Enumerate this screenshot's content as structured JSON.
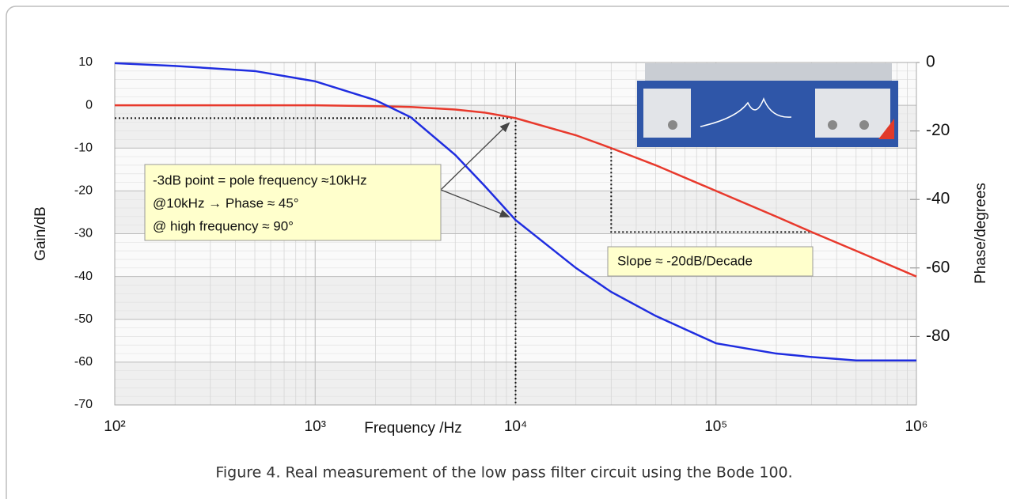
{
  "chart_data": {
    "type": "line",
    "xscale": "log",
    "x": [
      100,
      200,
      500,
      1000,
      2000,
      3000,
      5000,
      7000,
      10000,
      20000,
      30000,
      50000,
      100000,
      200000,
      300000,
      500000,
      1000000
    ],
    "xlim": [
      100,
      1000000
    ],
    "xticks": [
      {
        "value": 100,
        "label": "10²"
      },
      {
        "value": 1000,
        "label": "10³"
      },
      {
        "value": 10000,
        "label": "10⁴"
      },
      {
        "value": 100000,
        "label": "10⁵"
      },
      {
        "value": 1000000,
        "label": "10⁶"
      }
    ],
    "xlabel": "Frequency /Hz",
    "ylim": [
      -70,
      10
    ],
    "yticks": [
      10,
      0,
      -10,
      -20,
      -30,
      -40,
      -50,
      -60,
      -70
    ],
    "ylabel": "Gain/dB",
    "y2lim": [
      -100,
      0
    ],
    "y2ticks": [
      0,
      -20,
      -40,
      -60,
      -80
    ],
    "y2label": "Phase/degrees",
    "grid": true,
    "series": [
      {
        "color": "#e8392c",
        "values": [
          0,
          0,
          0,
          0,
          -0.2,
          -0.4,
          -1,
          -1.7,
          -3,
          -7,
          -10,
          -14,
          -20,
          -26,
          -29.6,
          -34,
          -40
        ]
      },
      {
        "color": "#1f2de0",
        "axis": "y2",
        "values": [
          -0.2,
          -1,
          -2.5,
          -5.5,
          -11,
          -16,
          -27,
          -36,
          -46,
          -60,
          -67,
          -74,
          -82,
          -85,
          -86,
          -87,
          -87
        ]
      }
    ],
    "annotations": [
      "-3dB point = pole frequency ≈10kHz",
      "@10kHz → Phase ≈ 45°",
      "@ high frequency ≈ 90°",
      "Slope ≈ -20dB/Decade"
    ]
  },
  "caption": "Figure 4. Real measurement of the low pass filter circuit using the Bode 100."
}
